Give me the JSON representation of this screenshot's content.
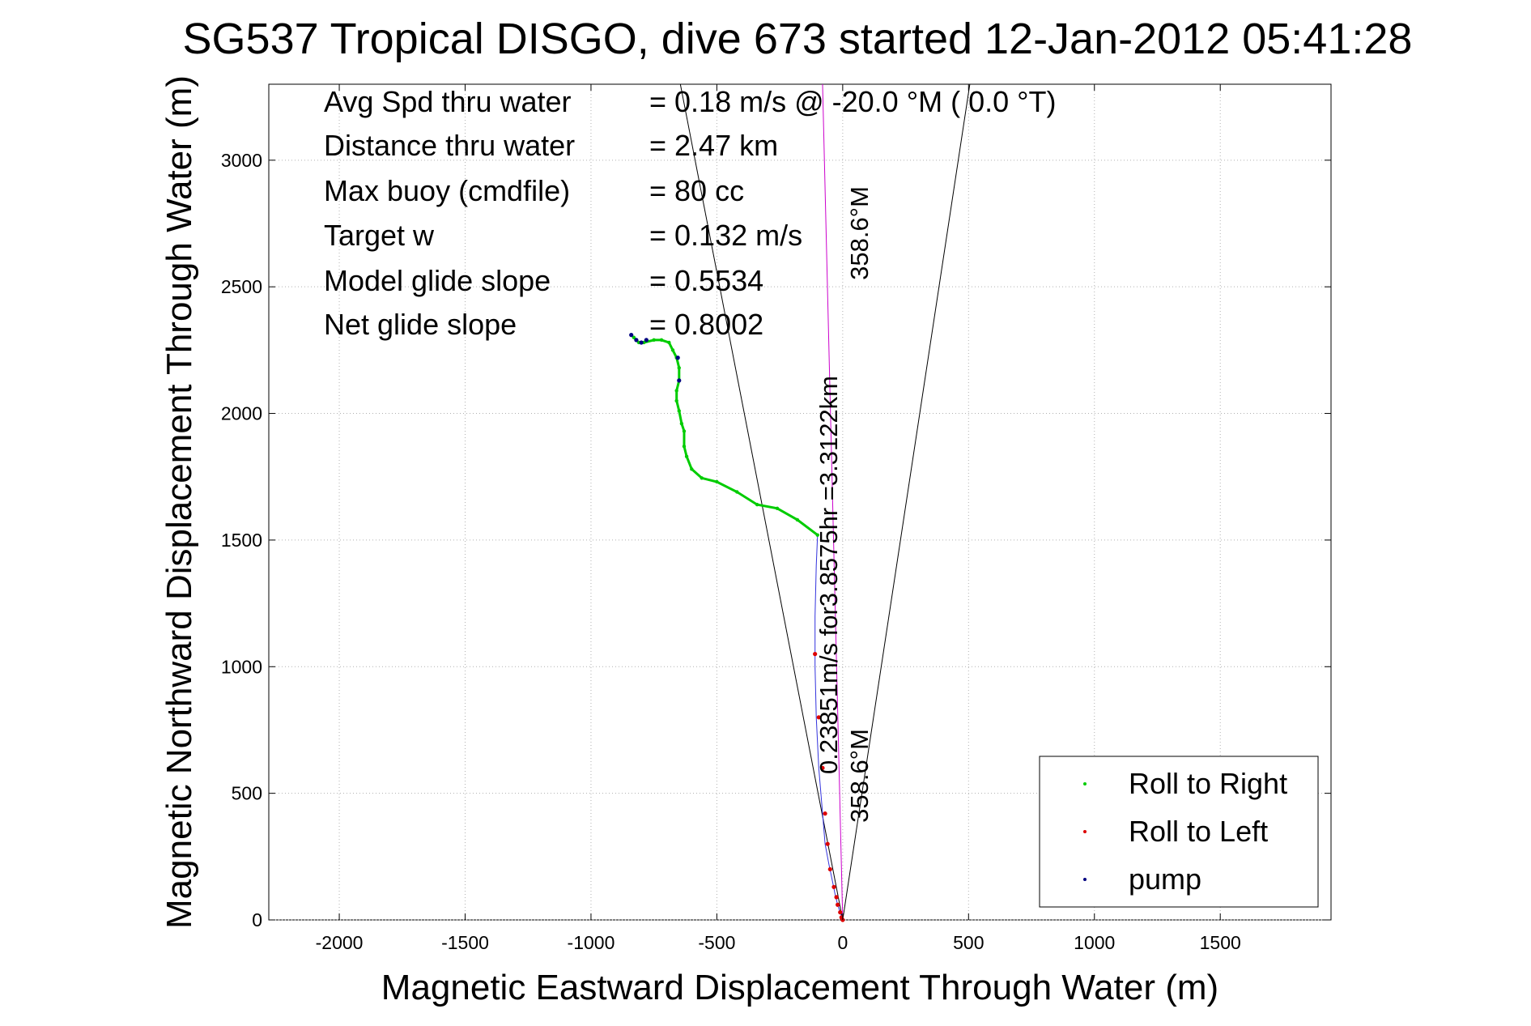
{
  "chart_data": {
    "type": "scatter",
    "title": "SG537 Tropical DISGO, dive 673 started 12-Jan-2012 05:41:28",
    "xlabel": "Magnetic Eastward Displacement Through Water (m)",
    "ylabel": "Magnetic Northward Displacement Through Water (m)",
    "xlim": [
      -2280,
      1940
    ],
    "ylim": [
      0,
      3300
    ],
    "xticks": [
      -2000,
      -1500,
      -1000,
      -500,
      0,
      500,
      1000,
      1500
    ],
    "yticks": [
      0,
      500,
      1000,
      1500,
      2000,
      2500,
      3000
    ],
    "xtick_labels": [
      "-2000",
      "-1500",
      "-1000",
      "-500",
      "0",
      "500",
      "1000",
      "1500"
    ],
    "ytick_labels": [
      "0",
      "500",
      "1000",
      "1500",
      "2000",
      "2500",
      "3000"
    ],
    "grid": true,
    "legend_position": "bottom-right",
    "info_lines": [
      {
        "label": "Avg Spd thru water",
        "value": "=  0.18 m/s @ -20.0 °M (  0.0 °T)"
      },
      {
        "label": "Distance thru water",
        "value": "=  2.47 km"
      },
      {
        "label": "Max buoy (cmdfile)",
        "value": "= 80 cc"
      },
      {
        "label": "Target w",
        "value": "= 0.132 m/s"
      },
      {
        "label": "Model glide slope",
        "value": "= 0.5534"
      },
      {
        "label": "Net glide slope",
        "value": "= 0.8002"
      }
    ],
    "annotations": {
      "heading_top": "358.6°M",
      "heading_bottom": "358.6°M",
      "current": "0.23851m/s for3.8575hr =3.3122km"
    },
    "guide_lines": [
      {
        "from": [
          0,
          0
        ],
        "to": [
          -645,
          3300
        ]
      },
      {
        "from": [
          0,
          0
        ],
        "to": [
          505,
          3300
        ]
      },
      {
        "from": [
          0,
          0
        ],
        "to": [
          -80,
          3300
        ]
      }
    ],
    "series": [
      {
        "name": "Roll to Right",
        "color": "#00cc00",
        "x": [
          -100,
          -180,
          -260,
          -340,
          -420,
          -500,
          -560,
          -600,
          -620,
          -630,
          -630,
          -640,
          -650,
          -660,
          -660,
          -650,
          -650,
          -660,
          -675,
          -690,
          -720,
          -750,
          -790,
          -810,
          -830
        ],
        "y": [
          1520,
          1580,
          1625,
          1640,
          1690,
          1730,
          1745,
          1780,
          1830,
          1870,
          1930,
          1960,
          2010,
          2050,
          2090,
          2130,
          2180,
          2220,
          2250,
          2280,
          2290,
          2290,
          2280,
          2280,
          2300
        ]
      },
      {
        "name": "Roll to Left",
        "color": "#dd0000",
        "x": [
          -110,
          -95,
          -80,
          -70,
          -60,
          -50,
          -35,
          -25,
          -20,
          -10,
          -5,
          0
        ],
        "y": [
          1050,
          800,
          600,
          420,
          300,
          200,
          130,
          90,
          60,
          30,
          10,
          0
        ]
      },
      {
        "name": "pump",
        "color": "#000080",
        "x": [
          -840,
          -820,
          -800,
          -780,
          -655,
          -650
        ],
        "y": [
          2310,
          2290,
          2280,
          2290,
          2220,
          2130
        ]
      }
    ],
    "track": {
      "color": "#3333dd",
      "x": [
        0,
        -10,
        -20,
        -30,
        -40,
        -55,
        -70,
        -80,
        -95,
        -105,
        -110,
        -110,
        -105,
        -100
      ],
      "y": [
        0,
        30,
        60,
        100,
        150,
        220,
        300,
        420,
        600,
        800,
        1000,
        1200,
        1400,
        1520
      ]
    }
  }
}
